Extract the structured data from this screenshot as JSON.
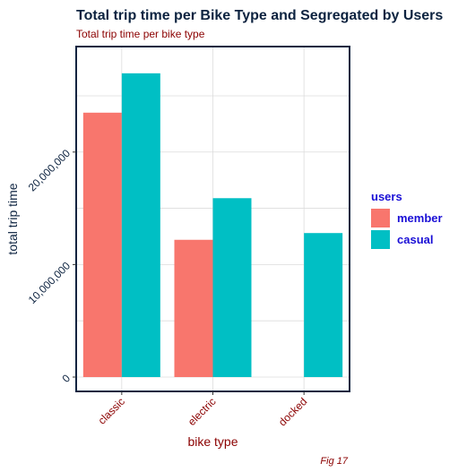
{
  "chart_data": {
    "type": "bar",
    "title": "Total trip time per Bike Type and Segregated by Users",
    "subtitle": "Total trip time per bike type",
    "xlabel": "bike type",
    "ylabel": "total trip time",
    "caption": "Fig 17",
    "categories": [
      "classic",
      "electric",
      "docked"
    ],
    "series": [
      {
        "name": "member",
        "color": "#f8766d",
        "values": [
          23500000,
          12200000,
          null
        ]
      },
      {
        "name": "casual",
        "color": "#00bfc4",
        "values": [
          27000000,
          15900000,
          12800000
        ]
      }
    ],
    "ylim": [
      0,
      28500000
    ],
    "yticks": [
      0,
      10000000,
      20000000
    ],
    "ytick_labels": [
      "0",
      "10,000,000",
      "20,000,000"
    ],
    "legend": {
      "title": "users",
      "position": "right"
    },
    "grid": true
  }
}
